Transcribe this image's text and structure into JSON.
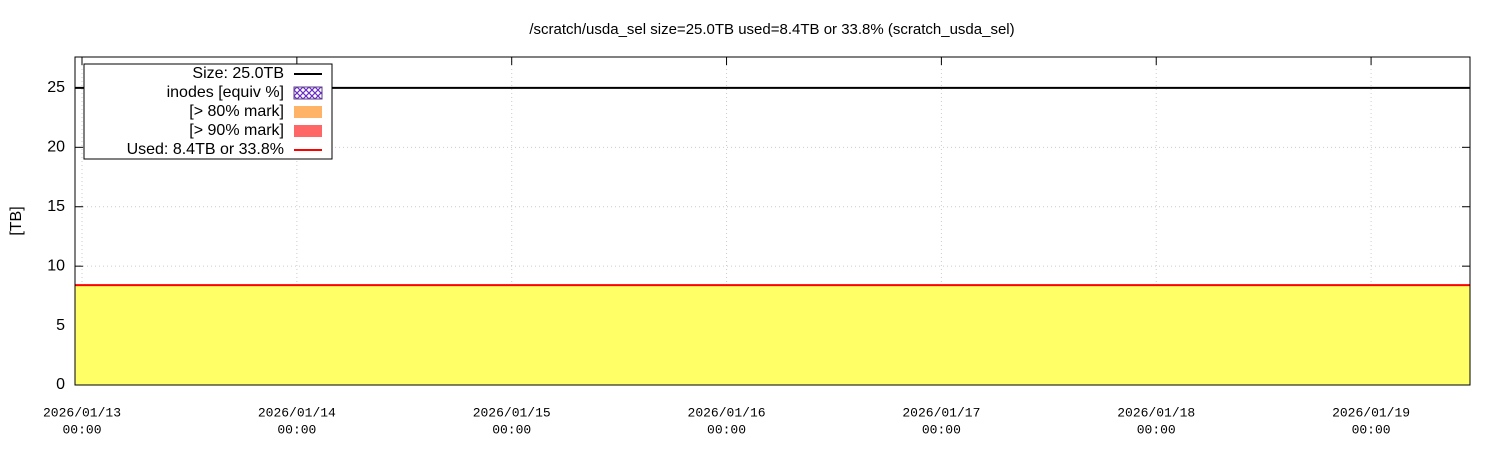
{
  "chart_data": {
    "type": "line",
    "title": "/scratch/usda_sel size=25.0TB used=8.4TB or 33.8% (scratch_usda_sel)",
    "y_label": "[TB]",
    "x": [
      "2026-01-12 23:13",
      "2026-01-19 11:03"
    ],
    "xlim": [
      "2026-01-12 23:13",
      "2026-01-19 11:03"
    ],
    "xticks": [
      {
        "value": "2026-01-13 00:00",
        "label": [
          "2026/01/13",
          "00:00"
        ]
      },
      {
        "value": "2026-01-14 00:00",
        "label": [
          "2026/01/14",
          "00:00"
        ]
      },
      {
        "value": "2026-01-15 00:00",
        "label": [
          "2026/01/15",
          "00:00"
        ]
      },
      {
        "value": "2026-01-16 00:00",
        "label": [
          "2026/01/16",
          "00:00"
        ]
      },
      {
        "value": "2026-01-17 00:00",
        "label": [
          "2026/01/17",
          "00:00"
        ]
      },
      {
        "value": "2026-01-18 00:00",
        "label": [
          "2026/01/18",
          "00:00"
        ]
      },
      {
        "value": "2026-01-19 00:00",
        "label": [
          "2026/01/19",
          "00:00"
        ]
      }
    ],
    "ylim": [
      0,
      27.6
    ],
    "yticks": [
      0,
      5,
      10,
      15,
      20,
      25
    ],
    "grid": true,
    "legend": "upper left",
    "series": [
      {
        "name": "Size: 25.0TB",
        "color": "#000000",
        "values": [
          25,
          25
        ]
      },
      {
        "name": "inodes [equiv %]",
        "color": "#5a3d8a",
        "style": "dash-dot",
        "legend_style": "hatch",
        "values": [
          7.5,
          7.5
        ]
      },
      {
        "name": "[> 80% mark]",
        "color": "#ffb366"
      },
      {
        "name": "[> 90% mark]",
        "color": "#ff6666"
      },
      {
        "name": "Used: 8.4TB or 33.8%",
        "color": "#ff0000",
        "fill": "#ffff66",
        "values": [
          8.4,
          8.4
        ]
      }
    ]
  }
}
